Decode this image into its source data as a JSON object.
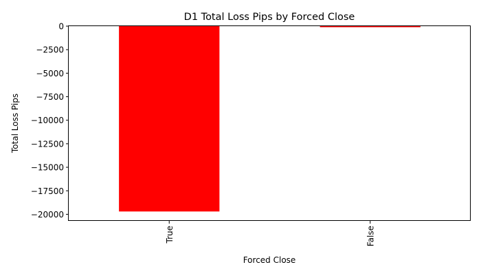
{
  "chart_data": {
    "type": "bar",
    "title": "D1 Total Loss Pips by Forced Close",
    "xlabel": "Forced Close",
    "ylabel": "Total Loss Pips",
    "categories": [
      "True",
      "False"
    ],
    "values": [
      -19700,
      -110
    ],
    "ylim": [
      -20700,
      0
    ],
    "yticks": [
      0,
      -2500,
      -5000,
      -7500,
      -10000,
      -12500,
      -15000,
      -17500,
      -20000
    ],
    "ytick_labels": [
      "0",
      "−2500",
      "−5000",
      "−7500",
      "−10000",
      "−12500",
      "−15000",
      "−17500",
      "−20000"
    ],
    "grid": false,
    "legend": "none",
    "bar_color": "#ff0000",
    "tick_label_rotation": "vertical"
  }
}
